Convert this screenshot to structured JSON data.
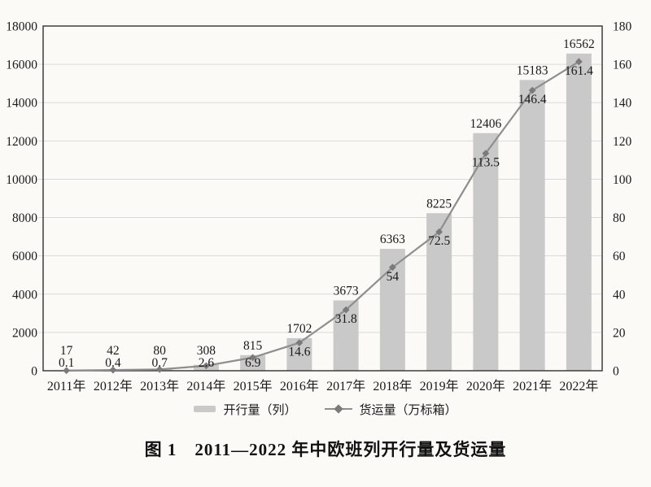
{
  "page": {
    "background": "#fbfaf6",
    "text_color": "#1a1a1a"
  },
  "chart_data": {
    "type": "bar",
    "subtype": "bar-line-combo",
    "title": "图 1　2011—2022 年中欧班列开行量及货运量",
    "categories": [
      "2011年",
      "2012年",
      "2013年",
      "2014年",
      "2015年",
      "2016年",
      "2017年",
      "2018年",
      "2019年",
      "2020年",
      "2021年",
      "2022年"
    ],
    "series": [
      {
        "name": "开行量（列）",
        "type": "bar",
        "axis": "left",
        "color": "#c9c9c9",
        "values": [
          17,
          42,
          80,
          308,
          815,
          1702,
          3673,
          6363,
          8225,
          12406,
          15183,
          16562
        ]
      },
      {
        "name": "货运量（万标箱）",
        "type": "line",
        "axis": "right",
        "color": "#8e8e8e",
        "marker": "diamond",
        "marker_color": "#7a7a7a",
        "values": [
          0.1,
          0.4,
          0.7,
          2.6,
          6.9,
          14.6,
          31.8,
          54,
          72.5,
          113.5,
          146.4,
          161.4
        ]
      }
    ],
    "left_axis": {
      "min": 0,
      "max": 18000,
      "step": 2000,
      "ticks": [
        0,
        2000,
        4000,
        6000,
        8000,
        10000,
        12000,
        14000,
        16000,
        18000
      ]
    },
    "right_axis": {
      "min": 0,
      "max": 180,
      "step": 20,
      "ticks": [
        0,
        20,
        40,
        60,
        80,
        100,
        120,
        140,
        160,
        180
      ]
    },
    "grid": true,
    "legend_position": "bottom",
    "colors": {
      "grid": "#d9d9d9",
      "plot_border": "#3c3c3c",
      "bar": "#c9c9c9",
      "line": "#8e8e8e",
      "marker": "#7a7a7a",
      "label_text": "#161616"
    }
  },
  "legend": {
    "items": [
      {
        "label": "开行量（列）",
        "swatch": "bar"
      },
      {
        "label": "货运量（万标箱）",
        "swatch": "line-diamond"
      }
    ]
  },
  "caption": {
    "text": "图 1　2011—2022 年中欧班列开行量及货运量"
  }
}
